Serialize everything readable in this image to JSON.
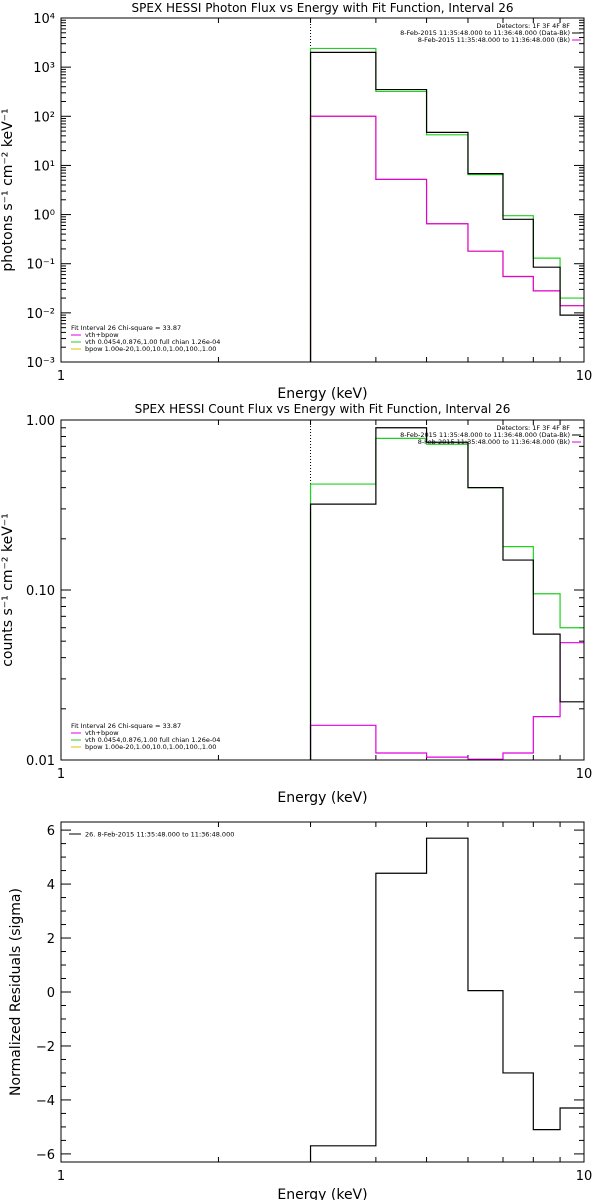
{
  "colors": {
    "data": "#000000",
    "total": "#e000e0",
    "vth": "#20d020",
    "bpow": "#e0c000",
    "axes": "#000000"
  },
  "chart_data": [
    {
      "type": "line",
      "title": "SPEX HESSI Photon Flux vs Energy with Fit Function, Interval 26",
      "xlabel": "Energy (keV)",
      "ylabel": "photons s⁻¹ cm⁻² keV⁻¹",
      "xscale": "log",
      "yscale": "log",
      "xlim": [
        1,
        10
      ],
      "ylim": [
        0.001,
        10000
      ],
      "x_ticks": [
        {
          "v": 1,
          "label": "1"
        },
        {
          "v": 10,
          "label": "10"
        }
      ],
      "y_ticks": [
        {
          "v": 10000,
          "label": "10⁴"
        },
        {
          "v": 1000,
          "label": "10³"
        },
        {
          "v": 100,
          "label": "10²"
        },
        {
          "v": 10,
          "label": "10¹"
        },
        {
          "v": 1,
          "label": "10⁰"
        },
        {
          "v": 0.1,
          "label": "10⁻¹"
        },
        {
          "v": 0.01,
          "label": "10⁻²"
        },
        {
          "v": 0.001,
          "label": "10⁻³"
        }
      ],
      "vline_x": 3,
      "bin_edges": [
        3,
        4,
        5,
        6,
        7,
        8,
        9,
        10
      ],
      "series": [
        {
          "color_key": "bpow",
          "values": [
            100,
            5.2,
            0.65,
            0.18,
            0.055,
            0.028,
            0.014
          ]
        },
        {
          "color_key": "vth",
          "values": [
            2400,
            320,
            42,
            6.5,
            0.95,
            0.13,
            0.02
          ]
        },
        {
          "color_key": "total",
          "values": [
            100,
            5.2,
            0.65,
            0.18,
            0.055,
            0.028,
            0.014
          ]
        },
        {
          "color_key": "data",
          "values": [
            2000,
            350,
            47,
            6.8,
            0.8,
            0.085,
            0.009
          ]
        }
      ],
      "legend_top": {
        "lines": [
          {
            "text": "Detectors: 1F 3F 4F 8F",
            "color_key": null
          },
          {
            "text": "8-Feb-2015 11:35:48.000 to 11:36:48.000 (Data-Bk)",
            "color_key": "data"
          },
          {
            "text": "8-Feb-2015 11:35:48.000 to 11:36:48.000 (Bk)",
            "color_key": "total"
          }
        ]
      },
      "legend_bottom": {
        "header": "Fit Interval 26   Chi-square = 33.87",
        "lines": [
          {
            "text": "vth+bpow",
            "color_key": "total"
          },
          {
            "text": "vth 0.0454,0.876,1.00  full chian 1.26e-04",
            "color_key": "vth"
          },
          {
            "text": "bpow 1.00e-20,1.00,10.0,1.00,100.,1.00",
            "color_key": "bpow"
          }
        ]
      }
    },
    {
      "type": "line",
      "title": "SPEX HESSI Count Flux vs Energy with Fit Function, Interval 26",
      "xlabel": "Energy (keV)",
      "ylabel": "counts s⁻¹ cm⁻² keV⁻¹",
      "xscale": "log",
      "yscale": "log",
      "xlim": [
        1,
        10
      ],
      "ylim": [
        0.01,
        1.0
      ],
      "x_ticks": [
        {
          "v": 1,
          "label": "1"
        },
        {
          "v": 10,
          "label": "10"
        }
      ],
      "y_ticks": [
        {
          "v": 1.0,
          "label": "1.00"
        },
        {
          "v": 0.1,
          "label": "0.10"
        },
        {
          "v": 0.01,
          "label": "0.01"
        }
      ],
      "vline_x": 3,
      "bin_edges": [
        3,
        4,
        5,
        6,
        7,
        8,
        9,
        10
      ],
      "series": [
        {
          "color_key": "vth",
          "values": [
            0.42,
            0.78,
            0.72,
            0.4,
            0.18,
            0.095,
            0.06
          ]
        },
        {
          "color_key": "total",
          "values": [
            0.016,
            0.011,
            0.0104,
            0.0101,
            0.011,
            0.018,
            0.049
          ]
        },
        {
          "color_key": "data",
          "values": [
            0.32,
            0.9,
            0.74,
            0.4,
            0.15,
            0.055,
            0.022
          ]
        }
      ],
      "legend_top": {
        "lines": [
          {
            "text": "Detectors: 1F 3F 4F 8F",
            "color_key": null
          },
          {
            "text": "8-Feb-2015 11:35:48.000 to 11:36:48.000 (Data-Bk)",
            "color_key": "data"
          },
          {
            "text": "8-Feb-2015 11:35:48.000 to 11:36:48.000 (Bk)",
            "color_key": "total"
          }
        ]
      },
      "legend_bottom": {
        "header": "Fit Interval 26   Chi-square = 33.87",
        "lines": [
          {
            "text": "vth+bpow",
            "color_key": "total"
          },
          {
            "text": "vth 0.0454,0.876,1.00  full chian 1.26e-04",
            "color_key": "vth"
          },
          {
            "text": "bpow 1.00e-20,1.00,10.0,1.00,100.,1.00",
            "color_key": "bpow"
          }
        ]
      }
    },
    {
      "type": "line",
      "title": "",
      "xlabel": "Energy (keV)",
      "ylabel": "Normalized Residuals (sigma)",
      "xscale": "log",
      "yscale": "linear",
      "xlim": [
        1,
        10
      ],
      "ylim": [
        -6.3,
        6.3
      ],
      "x_ticks": [
        {
          "v": 1,
          "label": "1"
        },
        {
          "v": 10,
          "label": "10"
        }
      ],
      "y_ticks": [
        {
          "v": 6,
          "label": "6"
        },
        {
          "v": 4,
          "label": "4"
        },
        {
          "v": 2,
          "label": "2"
        },
        {
          "v": 0,
          "label": "0"
        },
        {
          "v": -2,
          "label": "−2"
        },
        {
          "v": -4,
          "label": "−4"
        },
        {
          "v": -6,
          "label": "−6"
        }
      ],
      "vline_x": null,
      "bin_edges": [
        3,
        4,
        5,
        6,
        7,
        8,
        9,
        10
      ],
      "series": [
        {
          "color_key": "data",
          "values": [
            -5.7,
            4.4,
            5.7,
            0.05,
            -3.0,
            -5.1,
            -4.3
          ]
        }
      ],
      "legend_top": {
        "lines": [
          {
            "text": "26.  8-Feb-2015 11:35:48.000 to 11:36:48.000",
            "color_key": "data"
          }
        ]
      },
      "legend_bottom": null
    }
  ]
}
